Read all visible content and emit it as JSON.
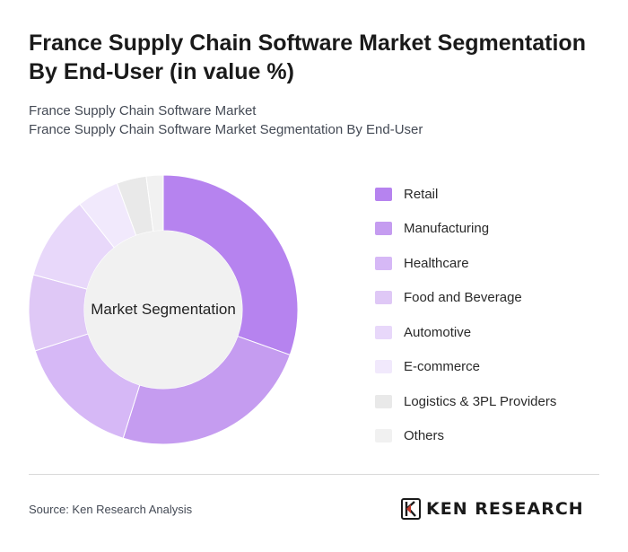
{
  "header": {
    "title": "France Supply Chain Software Market Segmentation By End-User (in value %)",
    "subtitle_line1": "France Supply Chain Software Market",
    "subtitle_line2": "France Supply Chain Software Market Segmentation By End-User"
  },
  "chart_data": {
    "type": "pie",
    "center_label": "Market Segmentation",
    "categories": [
      "Retail",
      "Manufacturing",
      "Healthcare",
      "Food and Beverage",
      "Automotive",
      "E-commerce",
      "Logistics & 3PL Providers",
      "Others"
    ],
    "values": [
      30,
      24,
      15,
      9,
      10,
      5,
      3.5,
      2
    ],
    "colors": [
      "#b683ef",
      "#c59cf0",
      "#d6b8f6",
      "#dfc8f6",
      "#e8d8fa",
      "#f1e9fc",
      "#e9e9e9",
      "#f1f1f1"
    ],
    "legend_position": "right"
  },
  "footer": {
    "source": "Source: Ken Research Analysis",
    "brand": "KEN RESEARCH"
  }
}
